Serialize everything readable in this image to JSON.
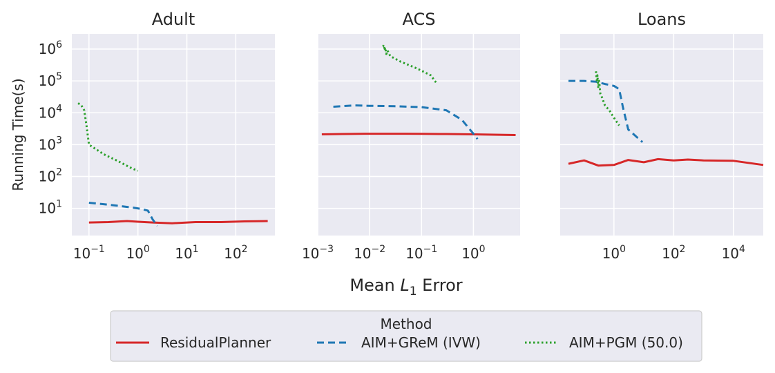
{
  "chart_data": {
    "type": "line",
    "ylabel": "Running Time(s)",
    "xlabel": "Mean L_1 Error",
    "xlabel_main": "Mean ",
    "xlabel_var": "L",
    "xlabel_sub": "1",
    "xlabel_tail": " Error",
    "x_scale": "log",
    "y_scale": "log",
    "ylim": [
      1.4,
      3000000
    ],
    "y_ticks": [
      1,
      2,
      3,
      4,
      5,
      6
    ],
    "grid": true,
    "legend": {
      "title": "Method",
      "placement": "bottom-center",
      "entries": [
        {
          "name": "ResidualPlanner",
          "color": "#d62728",
          "dash": "solid"
        },
        {
          "name": "AIM+GReM (IVW)",
          "color": "#1f77b4",
          "dash": "dashed"
        },
        {
          "name": "AIM+PGM (50.0)",
          "color": "#2ca02c",
          "dash": "dotted"
        }
      ]
    },
    "panels": [
      {
        "title": "Adult",
        "xlim_log10": [
          -1.35,
          2.8
        ],
        "x_ticks": [
          -1,
          0,
          1,
          2
        ],
        "series": [
          {
            "name": "ResidualPlanner",
            "x": [
              0.1,
              0.25,
              0.6,
              1.0,
              2.0,
              5.0,
              15,
              50,
              150,
              450
            ],
            "y": [
              3.6,
              3.7,
              4.0,
              3.8,
              3.6,
              3.4,
              3.7,
              3.7,
              3.9,
              4.0
            ]
          },
          {
            "name": "AIM+GReM (IVW)",
            "x": [
              0.1,
              0.2,
              0.4,
              0.8,
              1.2,
              1.6,
              2.0,
              2.5
            ],
            "y": [
              15,
              13.5,
              12,
              10.5,
              9.5,
              8.5,
              4.5,
              2.8
            ]
          },
          {
            "name": "AIM+PGM (50.0)",
            "x": [
              0.06,
              0.07,
              0.08,
              0.09,
              0.1,
              0.2,
              0.4,
              0.7,
              1.0
            ],
            "y": [
              20000,
              17000,
              12000,
              3500,
              1000,
              500,
              300,
              190,
              150
            ]
          }
        ]
      },
      {
        "title": "ACS",
        "xlim_log10": [
          -3.0,
          0.9
        ],
        "x_ticks": [
          -3,
          -2,
          -1,
          0
        ],
        "series": [
          {
            "name": "ResidualPlanner",
            "x": [
              0.0012,
              0.003,
              0.008,
              0.02,
              0.05,
              0.1,
              0.3,
              1.0,
              2.5,
              6.5
            ],
            "y": [
              2100,
              2150,
              2200,
              2200,
              2200,
              2180,
              2150,
              2100,
              2050,
              2000
            ]
          },
          {
            "name": "AIM+GReM (IVW)",
            "x": [
              0.002,
              0.005,
              0.01,
              0.03,
              0.1,
              0.3,
              0.6,
              1.0,
              1.2
            ],
            "y": [
              15500,
              17000,
              16500,
              16000,
              15000,
              12000,
              6000,
              2200,
              1500
            ]
          },
          {
            "name": "AIM+PGM (50.0)",
            "x": [
              0.018,
              0.019,
              0.0195,
              0.02,
              0.021,
              0.022,
              0.025,
              0.04,
              0.08,
              0.15,
              0.2
            ],
            "y": [
              1200000,
              1350000,
              900000,
              1100000,
              700000,
              900000,
              600000,
              400000,
              250000,
              150000,
              80000
            ]
          }
        ]
      },
      {
        "title": "Loans",
        "xlim_log10": [
          -1.8,
          5.0
        ],
        "x_ticks": [
          0,
          2,
          4
        ],
        "series": [
          {
            "name": "ResidualPlanner",
            "x": [
              0.03,
              0.1,
              0.3,
              1.0,
              3.0,
              10,
              30,
              100,
              300,
              1000,
              10000,
              100000
            ],
            "y": [
              250,
              320,
              220,
              230,
              330,
              280,
              350,
              320,
              340,
              320,
              310,
              230
            ]
          },
          {
            "name": "AIM+GReM (IVW)",
            "x": [
              0.03,
              0.1,
              0.25,
              0.5,
              1.0,
              1.5,
              2.0,
              3.0,
              9.0
            ],
            "y": [
              100000,
              100000,
              95000,
              80000,
              70000,
              55000,
              15000,
              3000,
              1200
            ]
          },
          {
            "name": "AIM+PGM (50.0)",
            "x": [
              0.25,
              0.27,
              0.28,
              0.3,
              0.32,
              0.35,
              0.4,
              0.5,
              0.7,
              1.0,
              1.5
            ],
            "y": [
              200000,
              90000,
              150000,
              60000,
              100000,
              40000,
              30000,
              17000,
              12000,
              7000,
              4000
            ]
          }
        ]
      }
    ]
  }
}
